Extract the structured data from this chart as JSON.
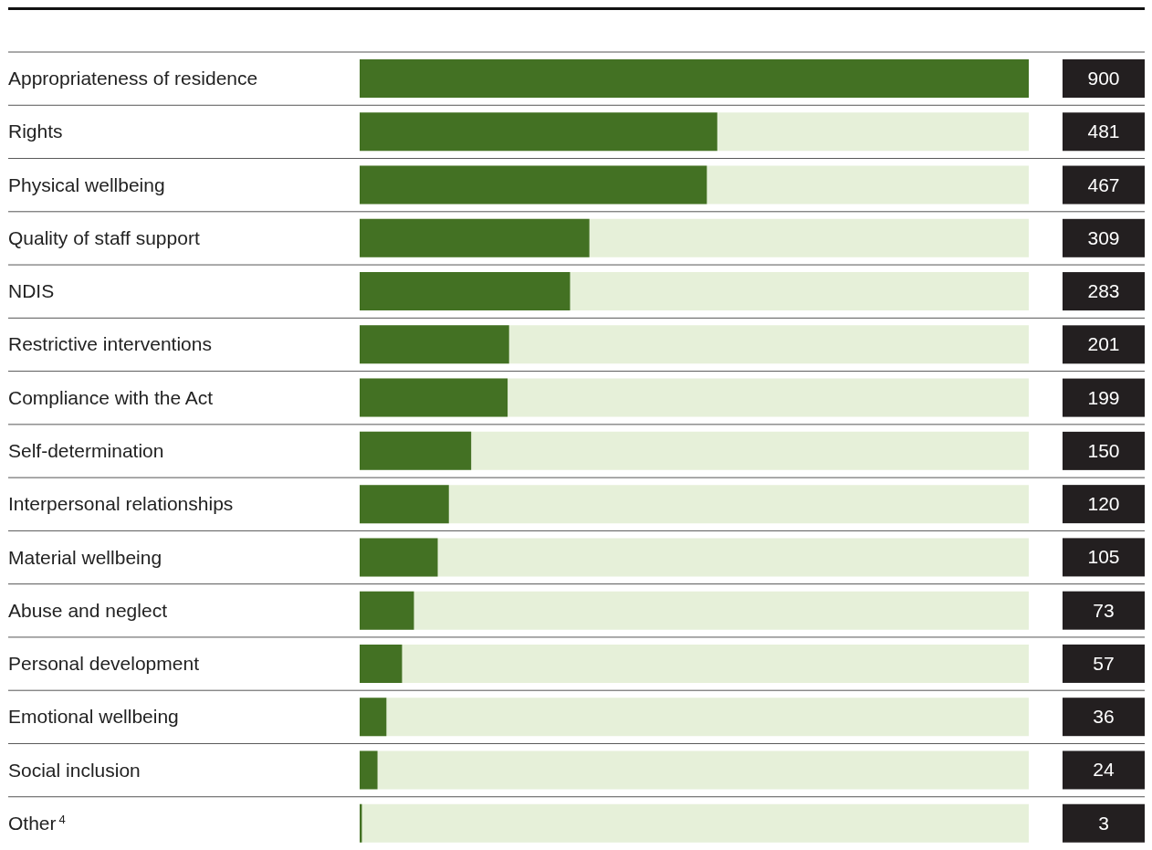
{
  "chart_data": {
    "type": "bar",
    "orientation": "horizontal",
    "data_labels": true,
    "categories": [
      "Appropriateness of residence",
      "Rights",
      "Physical wellbeing",
      "Quality of staff support",
      "NDIS",
      "Restrictive interventions",
      "Compliance with the Act",
      "Self-determination",
      "Interpersonal relationships",
      "Material wellbeing",
      "Abuse and neglect",
      "Personal development",
      "Emotional wellbeing",
      "Social inclusion",
      "Other$^{4}$"
    ],
    "values": [
      900,
      481,
      467,
      309,
      283,
      201,
      199,
      150,
      120,
      105,
      73,
      57,
      36,
      24,
      3
    ],
    "color": "#437123"
  }
}
